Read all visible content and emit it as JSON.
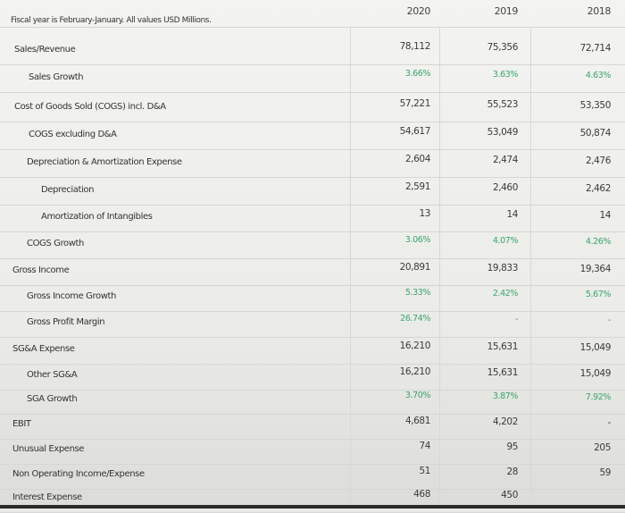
{
  "header": {
    "note": "Fiscal year is February-January. All values USD Millions.",
    "years": [
      "2020",
      "2019",
      "2018"
    ]
  },
  "rows": [
    {
      "label": "Sales/Revenue",
      "indent": 0,
      "values": [
        "78,112",
        "75,356",
        "72,714"
      ],
      "pct": false
    },
    {
      "label": "Sales Growth",
      "indent": 1,
      "values": [
        "3.66%",
        "3.63%",
        "4.63%"
      ],
      "pct": true
    },
    {
      "label": "Cost of Goods Sold (COGS) incl. D&A",
      "indent": 0,
      "values": [
        "57,221",
        "55,523",
        "53,350"
      ],
      "pct": false
    },
    {
      "label": "COGS excluding D&A",
      "indent": 1,
      "values": [
        "54,617",
        "53,049",
        "50,874"
      ],
      "pct": false
    },
    {
      "label": "Depreciation & Amortization Expense",
      "indent": 1,
      "values": [
        "2,604",
        "2,474",
        "2,476"
      ],
      "pct": false
    },
    {
      "label": "Depreciation",
      "indent": 2,
      "values": [
        "2,591",
        "2,460",
        "2,462"
      ],
      "pct": false
    },
    {
      "label": "Amortization of Intangibles",
      "indent": 2,
      "values": [
        "13",
        "14",
        "14"
      ],
      "pct": false
    },
    {
      "label": "COGS Growth",
      "indent": 1,
      "values": [
        "3.06%",
        "4.07%",
        "4.26%"
      ],
      "pct": true
    },
    {
      "label": "Gross Income",
      "indent": 0,
      "values": [
        "20,891",
        "19,833",
        "19,364"
      ],
      "pct": false
    },
    {
      "label": "Gross Income Growth",
      "indent": 1,
      "values": [
        "5.33%",
        "2.42%",
        "5.67%"
      ],
      "pct": true
    },
    {
      "label": "Gross Profit Margin",
      "indent": 1,
      "values": [
        "26.74%",
        "-",
        "-"
      ],
      "pct": true
    },
    {
      "label": "SG&A Expense",
      "indent": 0,
      "values": [
        "16,210",
        "15,631",
        "15,049"
      ],
      "pct": false
    },
    {
      "label": "Other SG&A",
      "indent": 1,
      "values": [
        "16,210",
        "15,631",
        "15,049"
      ],
      "pct": false
    },
    {
      "label": "SGA Growth",
      "indent": 1,
      "values": [
        "3.70%",
        "3.87%",
        "7.92%"
      ],
      "pct": true
    },
    {
      "label": "EBIT",
      "indent": 0,
      "values": [
        "4,681",
        "4,202",
        "-"
      ],
      "pct": false
    },
    {
      "label": "Unusual Expense",
      "indent": 0,
      "values": [
        "74",
        "95",
        "205"
      ],
      "pct": false
    },
    {
      "label": "Non Operating Income/Expense",
      "indent": 0,
      "values": [
        "51",
        "28",
        "59"
      ],
      "pct": false
    },
    {
      "label": "Interest Expense",
      "indent": 0,
      "values": [
        "468",
        "450",
        ""
      ],
      "pct": false
    }
  ],
  "colors": {
    "growth": "#3aa56b",
    "text": "#333333"
  }
}
